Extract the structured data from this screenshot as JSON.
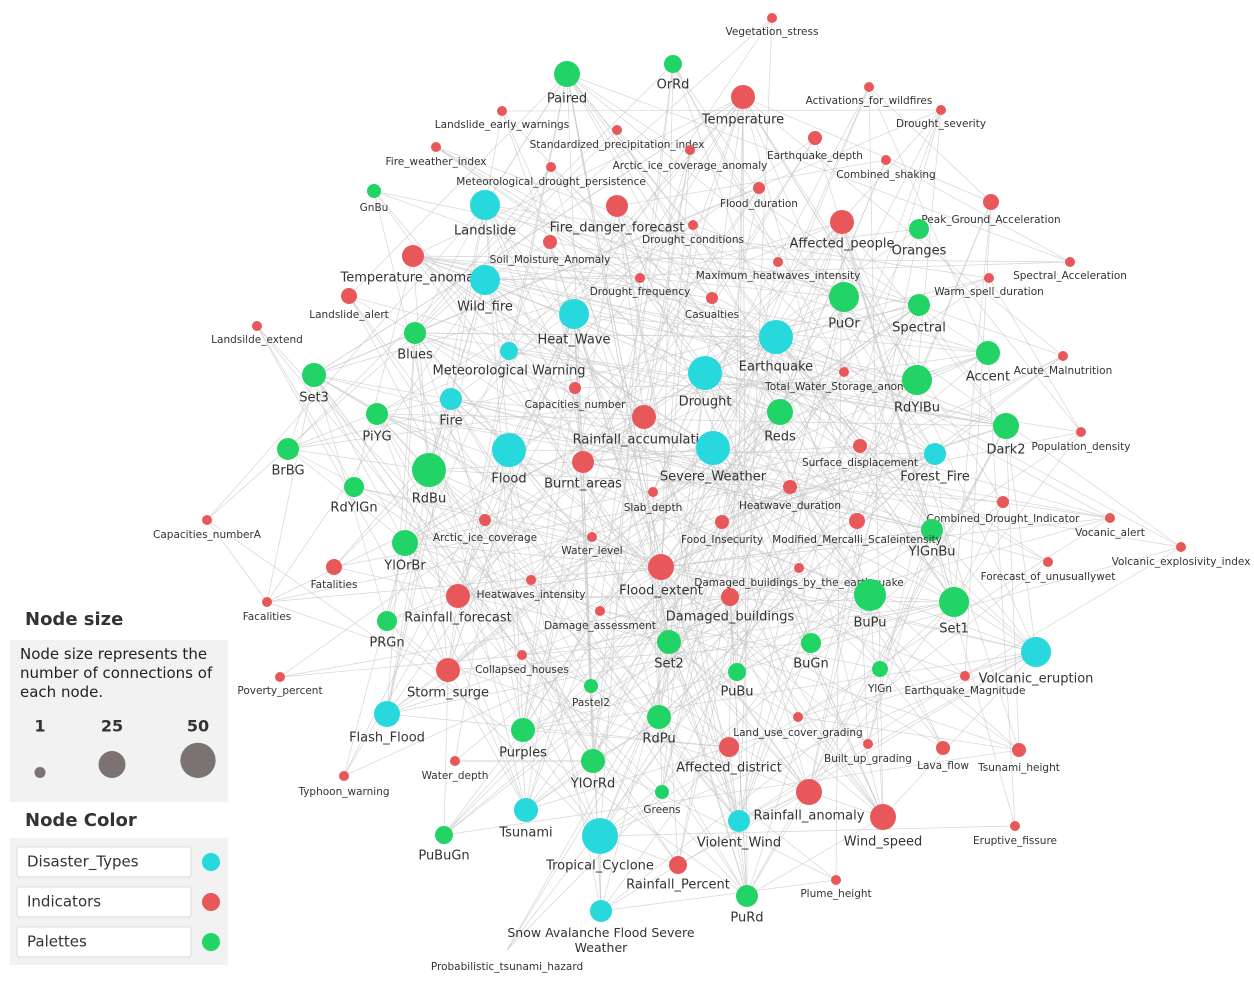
{
  "nodes": [
    {
      "label": "Vegetation_stress",
      "color": "#e8585a"
    },
    {
      "label": "Paired",
      "color": "#22d366"
    },
    {
      "label": "OrRd",
      "color": "#22d366"
    },
    {
      "label": "Temperature",
      "color": "#e8585a"
    },
    {
      "label": "Activations_for_wildfires",
      "color": "#e8585a"
    },
    {
      "label": "Landslide_early_warnings",
      "color": "#e8585a"
    },
    {
      "label": "Drought_severity",
      "color": "#e8585a"
    },
    {
      "label": "Standardized_precipitation_index",
      "color": "#e8585a"
    },
    {
      "label": "Fire_weather_index",
      "color": "#e8585a"
    },
    {
      "label": "Earthquake_depth",
      "color": "#e8585a"
    },
    {
      "label": "Arctic_ice_coverage_anomaly",
      "color": "#e8585a"
    },
    {
      "label": "Combined_shaking",
      "color": "#e8585a"
    },
    {
      "label": "Meteorological_drought_persistence",
      "color": "#e8585a"
    },
    {
      "label": "GnBu",
      "color": "#22d366"
    },
    {
      "label": "Landslide",
      "color": "#27d8dc"
    },
    {
      "label": "Fire_danger_forecast",
      "color": "#e8585a"
    },
    {
      "label": "Flood_duration",
      "color": "#e8585a"
    },
    {
      "label": "Peak_Ground_Acceleration",
      "color": "#e8585a"
    },
    {
      "label": "Affected_people",
      "color": "#e8585a"
    },
    {
      "label": "Drought_conditions",
      "color": "#e8585a"
    },
    {
      "label": "Oranges",
      "color": "#22d366"
    },
    {
      "label": "Soil_Moisture_Anomaly",
      "color": "#e8585a"
    },
    {
      "label": "Temperature_anomaly",
      "color": "#e8585a"
    },
    {
      "label": "Wild_fire",
      "color": "#27d8dc"
    },
    {
      "label": "Maximum_heatwaves_intensity",
      "color": "#e8585a"
    },
    {
      "label": "Spectral_Acceleration",
      "color": "#e8585a"
    },
    {
      "label": "Drought_frequency",
      "color": "#e8585a"
    },
    {
      "label": "Warm_spell_duration",
      "color": "#e8585a"
    },
    {
      "label": "Landslide_alert",
      "color": "#e8585a"
    },
    {
      "label": "Casualties",
      "color": "#e8585a"
    },
    {
      "label": "PuOr",
      "color": "#22d366"
    },
    {
      "label": "Spectral",
      "color": "#22d366"
    },
    {
      "label": "Heat_Wave",
      "color": "#27d8dc"
    },
    {
      "label": "Landsilde_extend",
      "color": "#e8585a"
    },
    {
      "label": "Blues",
      "color": "#22d366"
    },
    {
      "label": "Earthquake",
      "color": "#27d8dc"
    },
    {
      "label": "Meteorological Warning",
      "color": "#27d8dc"
    },
    {
      "label": "Accent",
      "color": "#22d366"
    },
    {
      "label": "Acute_Malnutrition",
      "color": "#e8585a"
    },
    {
      "label": "Set3",
      "color": "#22d366"
    },
    {
      "label": "Drought",
      "color": "#27d8dc"
    },
    {
      "label": "Total_Water_Storage_anomaly",
      "color": "#e8585a"
    },
    {
      "label": "RdYlBu",
      "color": "#22d366"
    },
    {
      "label": "Capacities_number",
      "color": "#e8585a"
    },
    {
      "label": "Fire",
      "color": "#27d8dc"
    },
    {
      "label": "PiYG",
      "color": "#22d366"
    },
    {
      "label": "Rainfall_accumulation",
      "color": "#e8585a"
    },
    {
      "label": "Reds",
      "color": "#22d366"
    },
    {
      "label": "Dark2",
      "color": "#22d366"
    },
    {
      "label": "Population_density",
      "color": "#e8585a"
    },
    {
      "label": "BrBG",
      "color": "#22d366"
    },
    {
      "label": "Flood",
      "color": "#27d8dc"
    },
    {
      "label": "Severe_Weather",
      "color": "#27d8dc"
    },
    {
      "label": "Surface_displacement",
      "color": "#e8585a"
    },
    {
      "label": "Forest_Fire",
      "color": "#27d8dc"
    },
    {
      "label": "RdBu",
      "color": "#22d366"
    },
    {
      "label": "Burnt_areas",
      "color": "#e8585a"
    },
    {
      "label": "RdYlGn",
      "color": "#22d366"
    },
    {
      "label": "Slab_depth",
      "color": "#e8585a"
    },
    {
      "label": "Heatwave_duration",
      "color": "#e8585a"
    },
    {
      "label": "Combined_Drought_Indicator",
      "color": "#e8585a"
    },
    {
      "label": "Capacities_numberA",
      "color": "#e8585a"
    },
    {
      "label": "YlGnBu",
      "color": "#22d366"
    },
    {
      "label": "Food_Insecurity",
      "color": "#e8585a"
    },
    {
      "label": "Modified_Mercalli_Scaleintensity",
      "color": "#e8585a"
    },
    {
      "label": "Vocanic_alert",
      "color": "#e8585a"
    },
    {
      "label": "Arctic_ice_coverage",
      "color": "#e8585a"
    },
    {
      "label": "Water_level",
      "color": "#e8585a"
    },
    {
      "label": "YlOrBr",
      "color": "#22d366"
    },
    {
      "label": "Volcanic_explosivity_index",
      "color": "#e8585a"
    },
    {
      "label": "Fatalities",
      "color": "#e8585a"
    },
    {
      "label": "Flood_extent",
      "color": "#e8585a"
    },
    {
      "label": "Damaged_buildings_by_the_earthquake",
      "color": "#e8585a"
    },
    {
      "label": "Forecast_of_unusuallywet",
      "color": "#e8585a"
    },
    {
      "label": "Heatwaves_intensity",
      "color": "#e8585a"
    },
    {
      "label": "Rainfall_forecast",
      "color": "#e8585a"
    },
    {
      "label": "BuPu",
      "color": "#22d366"
    },
    {
      "label": "Set1",
      "color": "#22d366"
    },
    {
      "label": "Facalities",
      "color": "#e8585a"
    },
    {
      "label": "Damage_assessment",
      "color": "#e8585a"
    },
    {
      "label": "Damaged_buildings",
      "color": "#e8585a"
    },
    {
      "label": "PRGn",
      "color": "#22d366"
    },
    {
      "label": "Set2",
      "color": "#22d366"
    },
    {
      "label": "BuGn",
      "color": "#22d366"
    },
    {
      "label": "Volcanic_eruption",
      "color": "#27d8dc"
    },
    {
      "label": "Collapsed_houses",
      "color": "#e8585a"
    },
    {
      "label": "Storm_surge",
      "color": "#e8585a"
    },
    {
      "label": "YlGn",
      "color": "#22d366"
    },
    {
      "label": "PuBu",
      "color": "#22d366"
    },
    {
      "label": "Earthquake_Magnitude",
      "color": "#e8585a"
    },
    {
      "label": "Poverty_percent",
      "color": "#e8585a"
    },
    {
      "label": "Pastel2",
      "color": "#22d366"
    },
    {
      "label": "Flash_Flood",
      "color": "#27d8dc"
    },
    {
      "label": "RdPu",
      "color": "#22d366"
    },
    {
      "label": "Land_use_cover_grading",
      "color": "#e8585a"
    },
    {
      "label": "Purples",
      "color": "#22d366"
    },
    {
      "label": "Affected_district",
      "color": "#e8585a"
    },
    {
      "label": "Built_up_grading",
      "color": "#e8585a"
    },
    {
      "label": "Lava_flow",
      "color": "#e8585a"
    },
    {
      "label": "Tsunami_height",
      "color": "#e8585a"
    },
    {
      "label": "Water_depth",
      "color": "#e8585a"
    },
    {
      "label": "YlOrRd",
      "color": "#22d366"
    },
    {
      "label": "Typhoon_warning",
      "color": "#e8585a"
    },
    {
      "label": "Rainfall_anomaly",
      "color": "#e8585a"
    },
    {
      "label": "Greens",
      "color": "#22d366"
    },
    {
      "label": "Tsunami",
      "color": "#27d8dc"
    },
    {
      "label": "Wind_speed",
      "color": "#e8585a"
    },
    {
      "label": "Eruptive_fissure",
      "color": "#e8585a"
    },
    {
      "label": "PuBuGn",
      "color": "#22d366"
    },
    {
      "label": "Violent_Wind",
      "color": "#27d8dc"
    },
    {
      "label": "Tropical_Cyclone",
      "color": "#27d8dc"
    },
    {
      "label": "Rainfall_Percent",
      "color": "#e8585a"
    },
    {
      "label": "Plume_height",
      "color": "#e8585a"
    },
    {
      "label": "PuRd",
      "color": "#22d366"
    },
    {
      "label": "Snow Avalanche Flood Severe Weather",
      "color": "#27d8dc"
    },
    {
      "label": "Probabilistic_tsunami_hazard",
      "color": "#e8585a"
    }
  ],
  "size_legend": {
    "title": "Node size",
    "description": "Node size represents the number of connections of each node.",
    "sizes": [
      1,
      25,
      50
    ],
    "color": "#7a7371"
  },
  "color_legend": {
    "title": "Node Color",
    "items": [
      {
        "label": "Disaster_Types",
        "color": "#27d8dc"
      },
      {
        "label": "Indicators",
        "color": "#e8585a"
      },
      {
        "label": "Palettes",
        "color": "#22d366"
      }
    ]
  }
}
